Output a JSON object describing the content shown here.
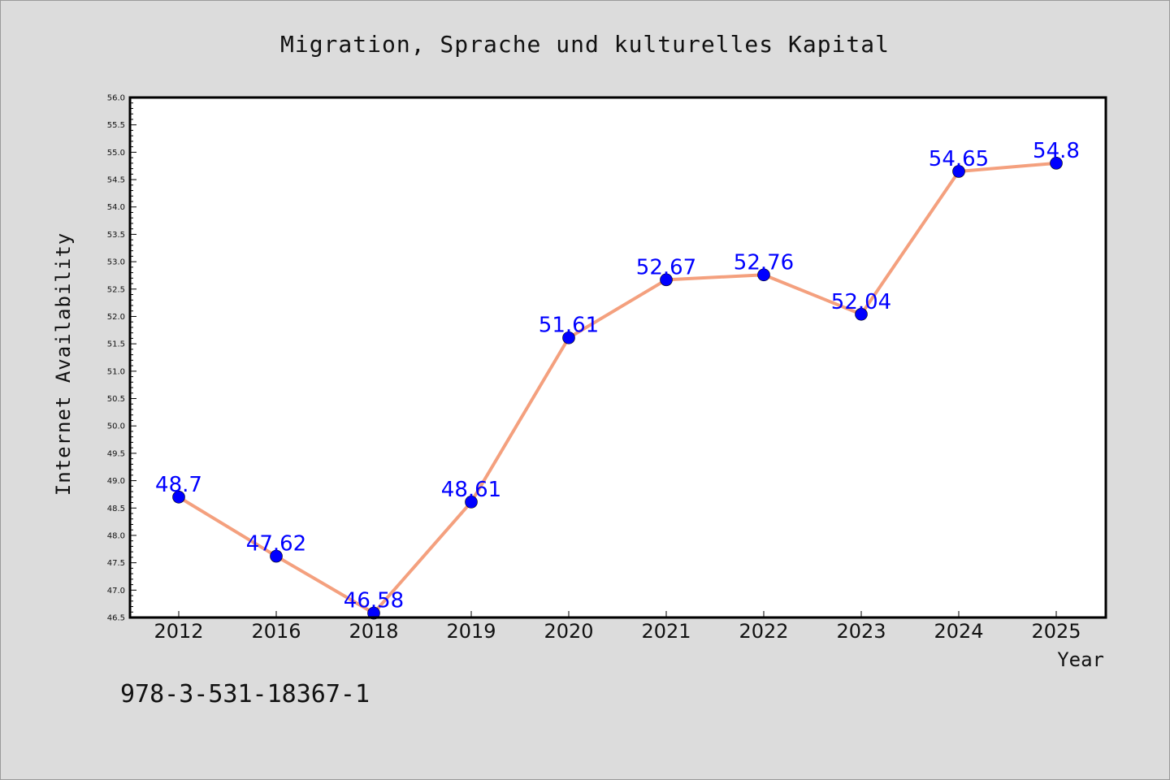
{
  "chart_data": {
    "type": "line",
    "title": "Migration, Sprache und kulturelles Kapital",
    "xlabel": "Year",
    "ylabel": "Internet Availability",
    "categories": [
      "2012",
      "2016",
      "2018",
      "2019",
      "2020",
      "2021",
      "2022",
      "2023",
      "2024",
      "2025"
    ],
    "series": [
      {
        "values": [
          48.7,
          47.62,
          46.58,
          48.61,
          51.61,
          52.67,
          52.76,
          52.04,
          54.65,
          54.8
        ],
        "data_labels": [
          "48.7",
          "47.62",
          "46.58",
          "48.61",
          "51.61",
          "52.67",
          "52.76",
          "52.04",
          "54.65",
          "54.8"
        ],
        "line_color": "#f4a07e",
        "marker_color": "#0000ff",
        "label_color": "#0000ff"
      }
    ],
    "ylim": [
      46.5,
      56.0
    ],
    "y_ticks": [
      "46.5",
      "47.0",
      "47.5",
      "48.0",
      "48.5",
      "49.0",
      "49.5",
      "50.0",
      "50.5",
      "51.0",
      "51.5",
      "52.0",
      "52.5",
      "53.0",
      "53.5",
      "54.0",
      "54.5",
      "55.0",
      "55.5",
      "56.0"
    ],
    "grid": false,
    "legend": "none",
    "background_color": "#dcdcdc",
    "plot_background_color": "#ffffff"
  },
  "footnote": "978-3-531-18367-1"
}
